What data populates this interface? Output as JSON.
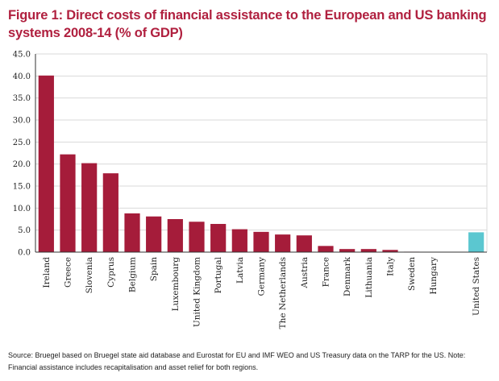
{
  "title": "Figure 1: Direct costs of financial assistance to the European and US banking systems 2008-14 (% of GDP)",
  "source": "Source: Bruegel based on Bruegel state aid database and Eurostat for EU and IMF WEO and US Treasury data on the TARP for the US. Note: Financial assistance includes recapitalisation and asset relief for both regions.",
  "colors": {
    "title": "#b0203f",
    "bar": "#a51c3a",
    "highlight": "#5bc7d0",
    "grid": "#d9d9d9",
    "axis": "#333333"
  },
  "chart_data": {
    "type": "bar",
    "title": "Figure 1: Direct costs of financial assistance to the European and US banking systems 2008-14 (% of GDP)",
    "xlabel": "",
    "ylabel": "",
    "ylim": [
      0,
      45
    ],
    "yticks": [
      "0.0",
      "5.0",
      "10.0",
      "15.0",
      "20.0",
      "25.0",
      "30.0",
      "35.0",
      "40.0",
      "45.0"
    ],
    "grid": true,
    "categories": [
      "Ireland",
      "Greece",
      "Slovenia",
      "Cyprus",
      "Belgium",
      "Spain",
      "Luxembourg",
      "United Kingdom",
      "Portugal",
      "Latvia",
      "Germany",
      "The Netherlands",
      "Austria",
      "France",
      "Denmark",
      "Lithuania",
      "Italy",
      "Sweden",
      "Hungary",
      "",
      "United States"
    ],
    "values": [
      40.1,
      22.2,
      20.2,
      17.9,
      8.8,
      8.1,
      7.5,
      6.9,
      6.4,
      5.2,
      4.6,
      4.0,
      3.8,
      1.4,
      0.7,
      0.7,
      0.5,
      0.1,
      0.05,
      null,
      4.5
    ],
    "highlight": [
      "United States"
    ]
  }
}
